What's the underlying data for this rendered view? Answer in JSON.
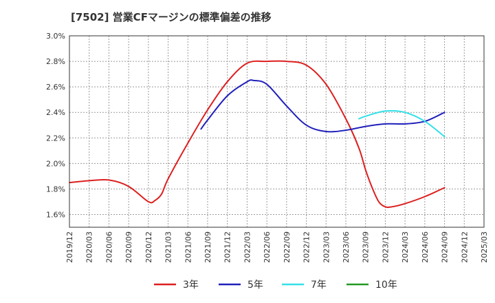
{
  "chart_data": {
    "type": "line",
    "title": "[7502]  営業CFマージンの標準偏差の推移",
    "xlabel": "",
    "ylabel": "",
    "x_ticks": [
      "2019/12",
      "2020/03",
      "2020/06",
      "2020/09",
      "2020/12",
      "2021/03",
      "2021/06",
      "2021/09",
      "2021/12",
      "2022/03",
      "2022/06",
      "2022/09",
      "2022/12",
      "2023/03",
      "2023/06",
      "2023/09",
      "2023/12",
      "2024/03",
      "2024/06",
      "2024/09",
      "2024/12",
      "2025/03"
    ],
    "y_ticks": [
      "1.6%",
      "1.8%",
      "2.0%",
      "2.2%",
      "2.4%",
      "2.6%",
      "2.8%",
      "3.0%"
    ],
    "ylim": [
      1.5,
      3.0
    ],
    "grid": true,
    "legend_position": "bottom",
    "series": [
      {
        "name": "3年",
        "color": "#dd1f1f",
        "points": [
          [
            "2019/12",
            1.85
          ],
          [
            "2020/03",
            1.865
          ],
          [
            "2020/06",
            1.87
          ],
          [
            "2020/09",
            1.82
          ],
          [
            "2020/12",
            1.7
          ],
          [
            "2021/01",
            1.71
          ],
          [
            "2021/02",
            1.76
          ],
          [
            "2021/03",
            1.88
          ],
          [
            "2021/06",
            2.16
          ],
          [
            "2021/09",
            2.42
          ],
          [
            "2021/12",
            2.64
          ],
          [
            "2022/03",
            2.785
          ],
          [
            "2022/06",
            2.8
          ],
          [
            "2022/09",
            2.8
          ],
          [
            "2022/12",
            2.77
          ],
          [
            "2023/03",
            2.62
          ],
          [
            "2023/06",
            2.35
          ],
          [
            "2023/08",
            2.12
          ],
          [
            "2023/09",
            1.95
          ],
          [
            "2023/10",
            1.81
          ],
          [
            "2023/11",
            1.7
          ],
          [
            "2023/12",
            1.66
          ],
          [
            "2024/01",
            1.66
          ],
          [
            "2024/03",
            1.685
          ],
          [
            "2024/06",
            1.74
          ],
          [
            "2024/09",
            1.81
          ]
        ]
      },
      {
        "name": "5年",
        "color": "#1f1fbb",
        "points": [
          [
            "2021/08",
            2.27
          ],
          [
            "2021/09",
            2.34
          ],
          [
            "2021/12",
            2.53
          ],
          [
            "2022/03",
            2.64
          ],
          [
            "2022/04",
            2.65
          ],
          [
            "2022/06",
            2.62
          ],
          [
            "2022/09",
            2.45
          ],
          [
            "2022/12",
            2.3
          ],
          [
            "2023/03",
            2.25
          ],
          [
            "2023/06",
            2.26
          ],
          [
            "2023/09",
            2.29
          ],
          [
            "2023/12",
            2.31
          ],
          [
            "2024/03",
            2.31
          ],
          [
            "2024/06",
            2.33
          ],
          [
            "2024/09",
            2.4
          ]
        ]
      },
      {
        "name": "7年",
        "color": "#33e0e8",
        "points": [
          [
            "2023/08",
            2.35
          ],
          [
            "2023/09",
            2.37
          ],
          [
            "2023/12",
            2.41
          ],
          [
            "2024/03",
            2.4
          ],
          [
            "2024/06",
            2.33
          ],
          [
            "2024/09",
            2.21
          ]
        ]
      },
      {
        "name": "10年",
        "color": "#229922",
        "points": []
      }
    ]
  }
}
